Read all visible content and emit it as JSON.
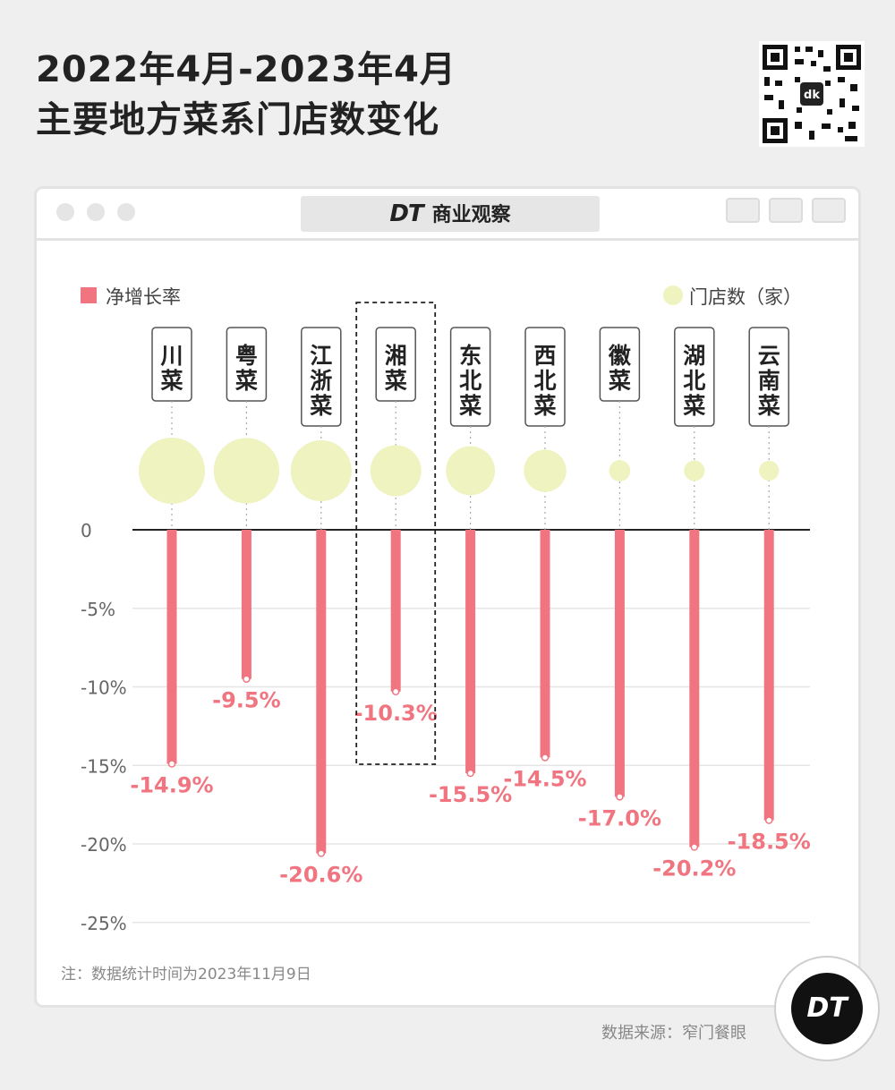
{
  "title_line1": "2022年4月-2023年4月",
  "title_line2": "主要地方菜系门店数变化",
  "brand": {
    "dt": "DT",
    "name": "商业观察"
  },
  "note": "注：数据统计时间为2023年11月9日",
  "source": "数据来源：窄门餐眼",
  "logo_text": "DT",
  "colors": {
    "bar": "#f07580",
    "bubble": "#eef3bf",
    "value_label": "#f07580"
  },
  "chart_data": {
    "type": "bar",
    "categories": [
      "川菜",
      "粤菜",
      "江浙菜",
      "湘菜",
      "东北菜",
      "西北菜",
      "徽菜",
      "湖北菜",
      "云南菜"
    ],
    "series": [
      {
        "name": "净增长率",
        "values": [
          -14.9,
          -9.5,
          -20.6,
          -10.3,
          -15.5,
          -14.5,
          -17.0,
          -20.2,
          -18.5
        ]
      },
      {
        "name": "门店数（家）",
        "relative_size": [
          1.0,
          0.99,
          0.92,
          0.77,
          0.74,
          0.64,
          0.32,
          0.31,
          0.3
        ]
      }
    ],
    "data_labels": [
      "-14.9%",
      "-9.5%",
      "-20.6%",
      "-10.3%",
      "-15.5%",
      "-14.5%",
      "-17.0%",
      "-20.2%",
      "-18.5%"
    ],
    "y_ticks": [
      "0",
      "-5%",
      "-10%",
      "-15%",
      "-20%",
      "-25%"
    ],
    "y_tick_values": [
      0,
      -5,
      -10,
      -15,
      -20,
      -25
    ],
    "ylim": [
      -25,
      0
    ],
    "highlighted": "湘菜",
    "legend": {
      "position": "top"
    }
  }
}
